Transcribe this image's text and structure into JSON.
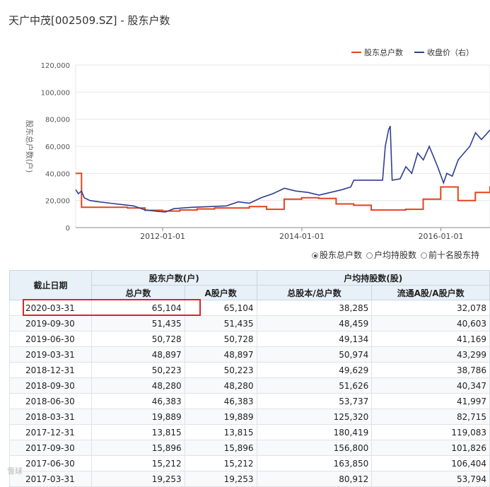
{
  "header": {
    "title": "天广中茂[002509.SZ] - 股东户数"
  },
  "chart_data": {
    "type": "line",
    "legend_position": "top-right",
    "ylabel": "股东总户数(户)",
    "ylim": [
      0,
      120000
    ],
    "yticks": [
      "0",
      "20,000",
      "40,000",
      "60,000",
      "80,000",
      "100,000",
      "120,000"
    ],
    "xticks": [
      {
        "label": "2012-01-01",
        "date": "2012-01-01"
      },
      {
        "label": "2014-01-01",
        "date": "2014-01-01"
      },
      {
        "label": "2016-01-01",
        "date": "2016-01-01"
      }
    ],
    "xlim": [
      "2010-10-01",
      "2016-09-15"
    ],
    "grid": true,
    "series": [
      {
        "name": "股东总户数",
        "color": "#e2441c",
        "step": true,
        "points": [
          [
            "2010-10-01",
            40000
          ],
          [
            "2010-11-01",
            15000
          ],
          [
            "2011-06-30",
            14500
          ],
          [
            "2011-09-30",
            12800
          ],
          [
            "2011-12-31",
            12200
          ],
          [
            "2012-03-31",
            13000
          ],
          [
            "2012-06-30",
            13800
          ],
          [
            "2012-09-30",
            14500
          ],
          [
            "2013-03-31",
            15500
          ],
          [
            "2013-06-30",
            13500
          ],
          [
            "2013-09-30",
            21000
          ],
          [
            "2013-12-31",
            22000
          ],
          [
            "2014-03-31",
            21500
          ],
          [
            "2014-06-30",
            17500
          ],
          [
            "2014-09-30",
            16500
          ],
          [
            "2014-12-31",
            13000
          ],
          [
            "2015-06-30",
            13500
          ],
          [
            "2015-09-30",
            21000
          ],
          [
            "2015-12-31",
            30000
          ],
          [
            "2016-03-31",
            20000
          ],
          [
            "2016-06-30",
            26000
          ],
          [
            "2016-09-15",
            30500
          ]
        ]
      },
      {
        "name": "收盘价（右）",
        "color": "#2e3f8f",
        "step": false,
        "points": [
          [
            "2010-10-01",
            28000
          ],
          [
            "2010-10-15",
            25000
          ],
          [
            "2010-11-01",
            27000
          ],
          [
            "2010-11-15",
            22000
          ],
          [
            "2010-12-15",
            20000
          ],
          [
            "2011-02-01",
            19000
          ],
          [
            "2011-04-01",
            18000
          ],
          [
            "2011-06-01",
            17000
          ],
          [
            "2011-08-01",
            16000
          ],
          [
            "2011-10-01",
            13000
          ],
          [
            "2011-12-01",
            12000
          ],
          [
            "2012-01-15",
            11500
          ],
          [
            "2012-03-01",
            14000
          ],
          [
            "2012-06-01",
            15000
          ],
          [
            "2012-09-01",
            15500
          ],
          [
            "2012-12-01",
            16000
          ],
          [
            "2013-02-01",
            19000
          ],
          [
            "2013-04-01",
            18000
          ],
          [
            "2013-06-01",
            22000
          ],
          [
            "2013-08-01",
            25000
          ],
          [
            "2013-10-01",
            29000
          ],
          [
            "2013-12-01",
            27000
          ],
          [
            "2014-02-01",
            26000
          ],
          [
            "2014-04-01",
            24000
          ],
          [
            "2014-06-01",
            26000
          ],
          [
            "2014-08-01",
            28000
          ],
          [
            "2014-09-15",
            30000
          ],
          [
            "2014-10-01",
            35000
          ],
          [
            "2015-03-01",
            35000
          ],
          [
            "2015-03-15",
            60000
          ],
          [
            "2015-04-01",
            72000
          ],
          [
            "2015-04-10",
            75000
          ],
          [
            "2015-04-20",
            35000
          ],
          [
            "2015-06-01",
            36000
          ],
          [
            "2015-07-01",
            45000
          ],
          [
            "2015-08-01",
            40000
          ],
          [
            "2015-09-01",
            55000
          ],
          [
            "2015-10-01",
            50000
          ],
          [
            "2015-11-01",
            60000
          ],
          [
            "2015-12-15",
            45000
          ],
          [
            "2016-01-15",
            33000
          ],
          [
            "2016-02-01",
            40000
          ],
          [
            "2016-03-01",
            38000
          ],
          [
            "2016-04-01",
            50000
          ],
          [
            "2016-05-01",
            55000
          ],
          [
            "2016-06-01",
            60000
          ],
          [
            "2016-07-01",
            70000
          ],
          [
            "2016-08-01",
            65000
          ],
          [
            "2016-09-15",
            72000
          ]
        ]
      }
    ]
  },
  "radio_options": [
    {
      "label": "股东总户数",
      "selected": true
    },
    {
      "label": "户均持股数",
      "selected": false
    },
    {
      "label": "前十名股东持",
      "selected": false
    }
  ],
  "table": {
    "group_headers": [
      "股东户数(户)",
      "户均持股数(股)"
    ],
    "date_header": "截止日期",
    "sub_headers": [
      "总户数",
      "A股户数",
      "总股本/总户数",
      "流通A股/A股户数"
    ],
    "rows": [
      [
        "2020-03-31",
        "65,104",
        "65,104",
        "38,285",
        "32,078"
      ],
      [
        "2019-09-30",
        "51,435",
        "51,435",
        "48,459",
        "40,603"
      ],
      [
        "2019-06-30",
        "50,728",
        "50,728",
        "49,134",
        "41,169"
      ],
      [
        "2019-03-31",
        "48,897",
        "48,897",
        "50,974",
        "43,299"
      ],
      [
        "2018-12-31",
        "50,223",
        "50,223",
        "49,629",
        "38,786"
      ],
      [
        "2018-09-30",
        "48,280",
        "48,280",
        "51,626",
        "40,347"
      ],
      [
        "2018-06-30",
        "46,383",
        "46,383",
        "53,737",
        "41,997"
      ],
      [
        "2018-03-31",
        "19,889",
        "19,889",
        "125,320",
        "82,715"
      ],
      [
        "2017-12-31",
        "13,815",
        "13,815",
        "180,419",
        "119,083"
      ],
      [
        "2017-09-30",
        "15,896",
        "15,896",
        "156,800",
        "101,826"
      ],
      [
        "2017-06-30",
        "15,212",
        "15,212",
        "163,850",
        "106,404"
      ],
      [
        "2017-03-31",
        "19,253",
        "19,253",
        "80,912",
        "53,794"
      ]
    ]
  },
  "watermark": "雪球",
  "colors": {
    "highlight": "#e0222d",
    "header_bg": "#e8f0f8"
  }
}
